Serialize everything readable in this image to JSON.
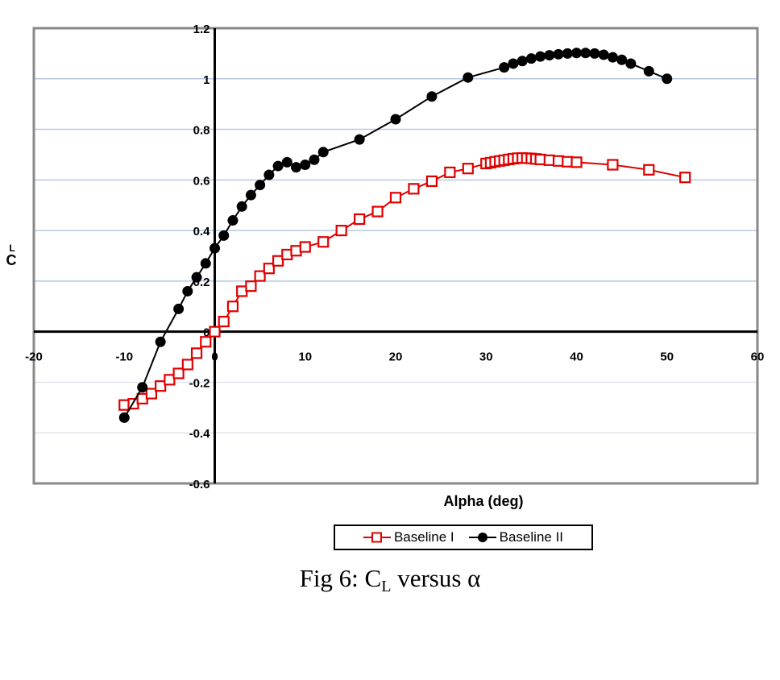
{
  "chart_data": {
    "type": "line",
    "title": "",
    "xlabel": "Alpha (deg)",
    "ylabel": "CL",
    "xlim": [
      -20,
      60
    ],
    "ylim": [
      -0.6,
      1.2
    ],
    "x_ticks": [
      -20,
      -10,
      0,
      10,
      20,
      30,
      40,
      50,
      60
    ],
    "y_ticks": [
      -0.6,
      -0.4,
      -0.2,
      0,
      0.2,
      0.4,
      0.6,
      0.8,
      1,
      1.2
    ],
    "grid": "horizontal",
    "legend_position": "bottom",
    "series": [
      {
        "name": "Baseline I",
        "color": "#e00000",
        "marker": "open-square",
        "x": [
          -10,
          -9,
          -8,
          -7,
          -6,
          -5,
          -4,
          -3,
          -2,
          -1,
          0,
          1,
          2,
          3,
          4,
          5,
          6,
          7,
          8,
          9,
          10,
          12,
          14,
          16,
          18,
          20,
          22,
          24,
          26,
          28,
          30,
          30.5,
          31,
          31.5,
          32,
          32.5,
          33,
          33.5,
          34,
          34.5,
          35,
          35.5,
          36,
          37,
          38,
          39,
          40,
          44,
          48,
          52
        ],
        "y": [
          -0.29,
          -0.285,
          -0.265,
          -0.245,
          -0.215,
          -0.19,
          -0.165,
          -0.13,
          -0.085,
          -0.04,
          0.0,
          0.04,
          0.1,
          0.16,
          0.18,
          0.22,
          0.25,
          0.28,
          0.305,
          0.32,
          0.335,
          0.355,
          0.4,
          0.445,
          0.475,
          0.53,
          0.565,
          0.595,
          0.63,
          0.645,
          0.665,
          0.668,
          0.672,
          0.675,
          0.678,
          0.681,
          0.684,
          0.686,
          0.687,
          0.686,
          0.685,
          0.683,
          0.681,
          0.678,
          0.675,
          0.672,
          0.67,
          0.66,
          0.64,
          0.61
        ]
      },
      {
        "name": "Baseline II",
        "color": "#000000",
        "marker": "filled-circle",
        "x": [
          -10,
          -8,
          -6,
          -4,
          -3,
          -2,
          -1,
          0,
          1,
          2,
          3,
          4,
          5,
          6,
          7,
          8,
          9,
          10,
          11,
          12,
          16,
          20,
          24,
          28,
          32,
          33,
          34,
          35,
          36,
          37,
          38,
          39,
          40,
          41,
          42,
          43,
          44,
          45,
          46,
          48,
          50
        ],
        "y": [
          -0.34,
          -0.22,
          -0.04,
          0.09,
          0.16,
          0.215,
          0.27,
          0.33,
          0.38,
          0.44,
          0.495,
          0.54,
          0.58,
          0.62,
          0.655,
          0.67,
          0.65,
          0.66,
          0.68,
          0.71,
          0.76,
          0.84,
          0.93,
          1.005,
          1.045,
          1.06,
          1.07,
          1.08,
          1.088,
          1.093,
          1.097,
          1.1,
          1.102,
          1.102,
          1.1,
          1.095,
          1.085,
          1.075,
          1.06,
          1.03,
          1.0
        ]
      }
    ]
  },
  "legend": {
    "items": [
      {
        "label": "Baseline I"
      },
      {
        "label": "Baseline II"
      }
    ]
  },
  "caption": {
    "prefix": "Fig 6: C",
    "subscript": "L",
    "suffix": " versus α"
  },
  "axis": {
    "x_title": "Alpha (deg)",
    "y_title_main": "C",
    "y_title_sub": "L"
  }
}
